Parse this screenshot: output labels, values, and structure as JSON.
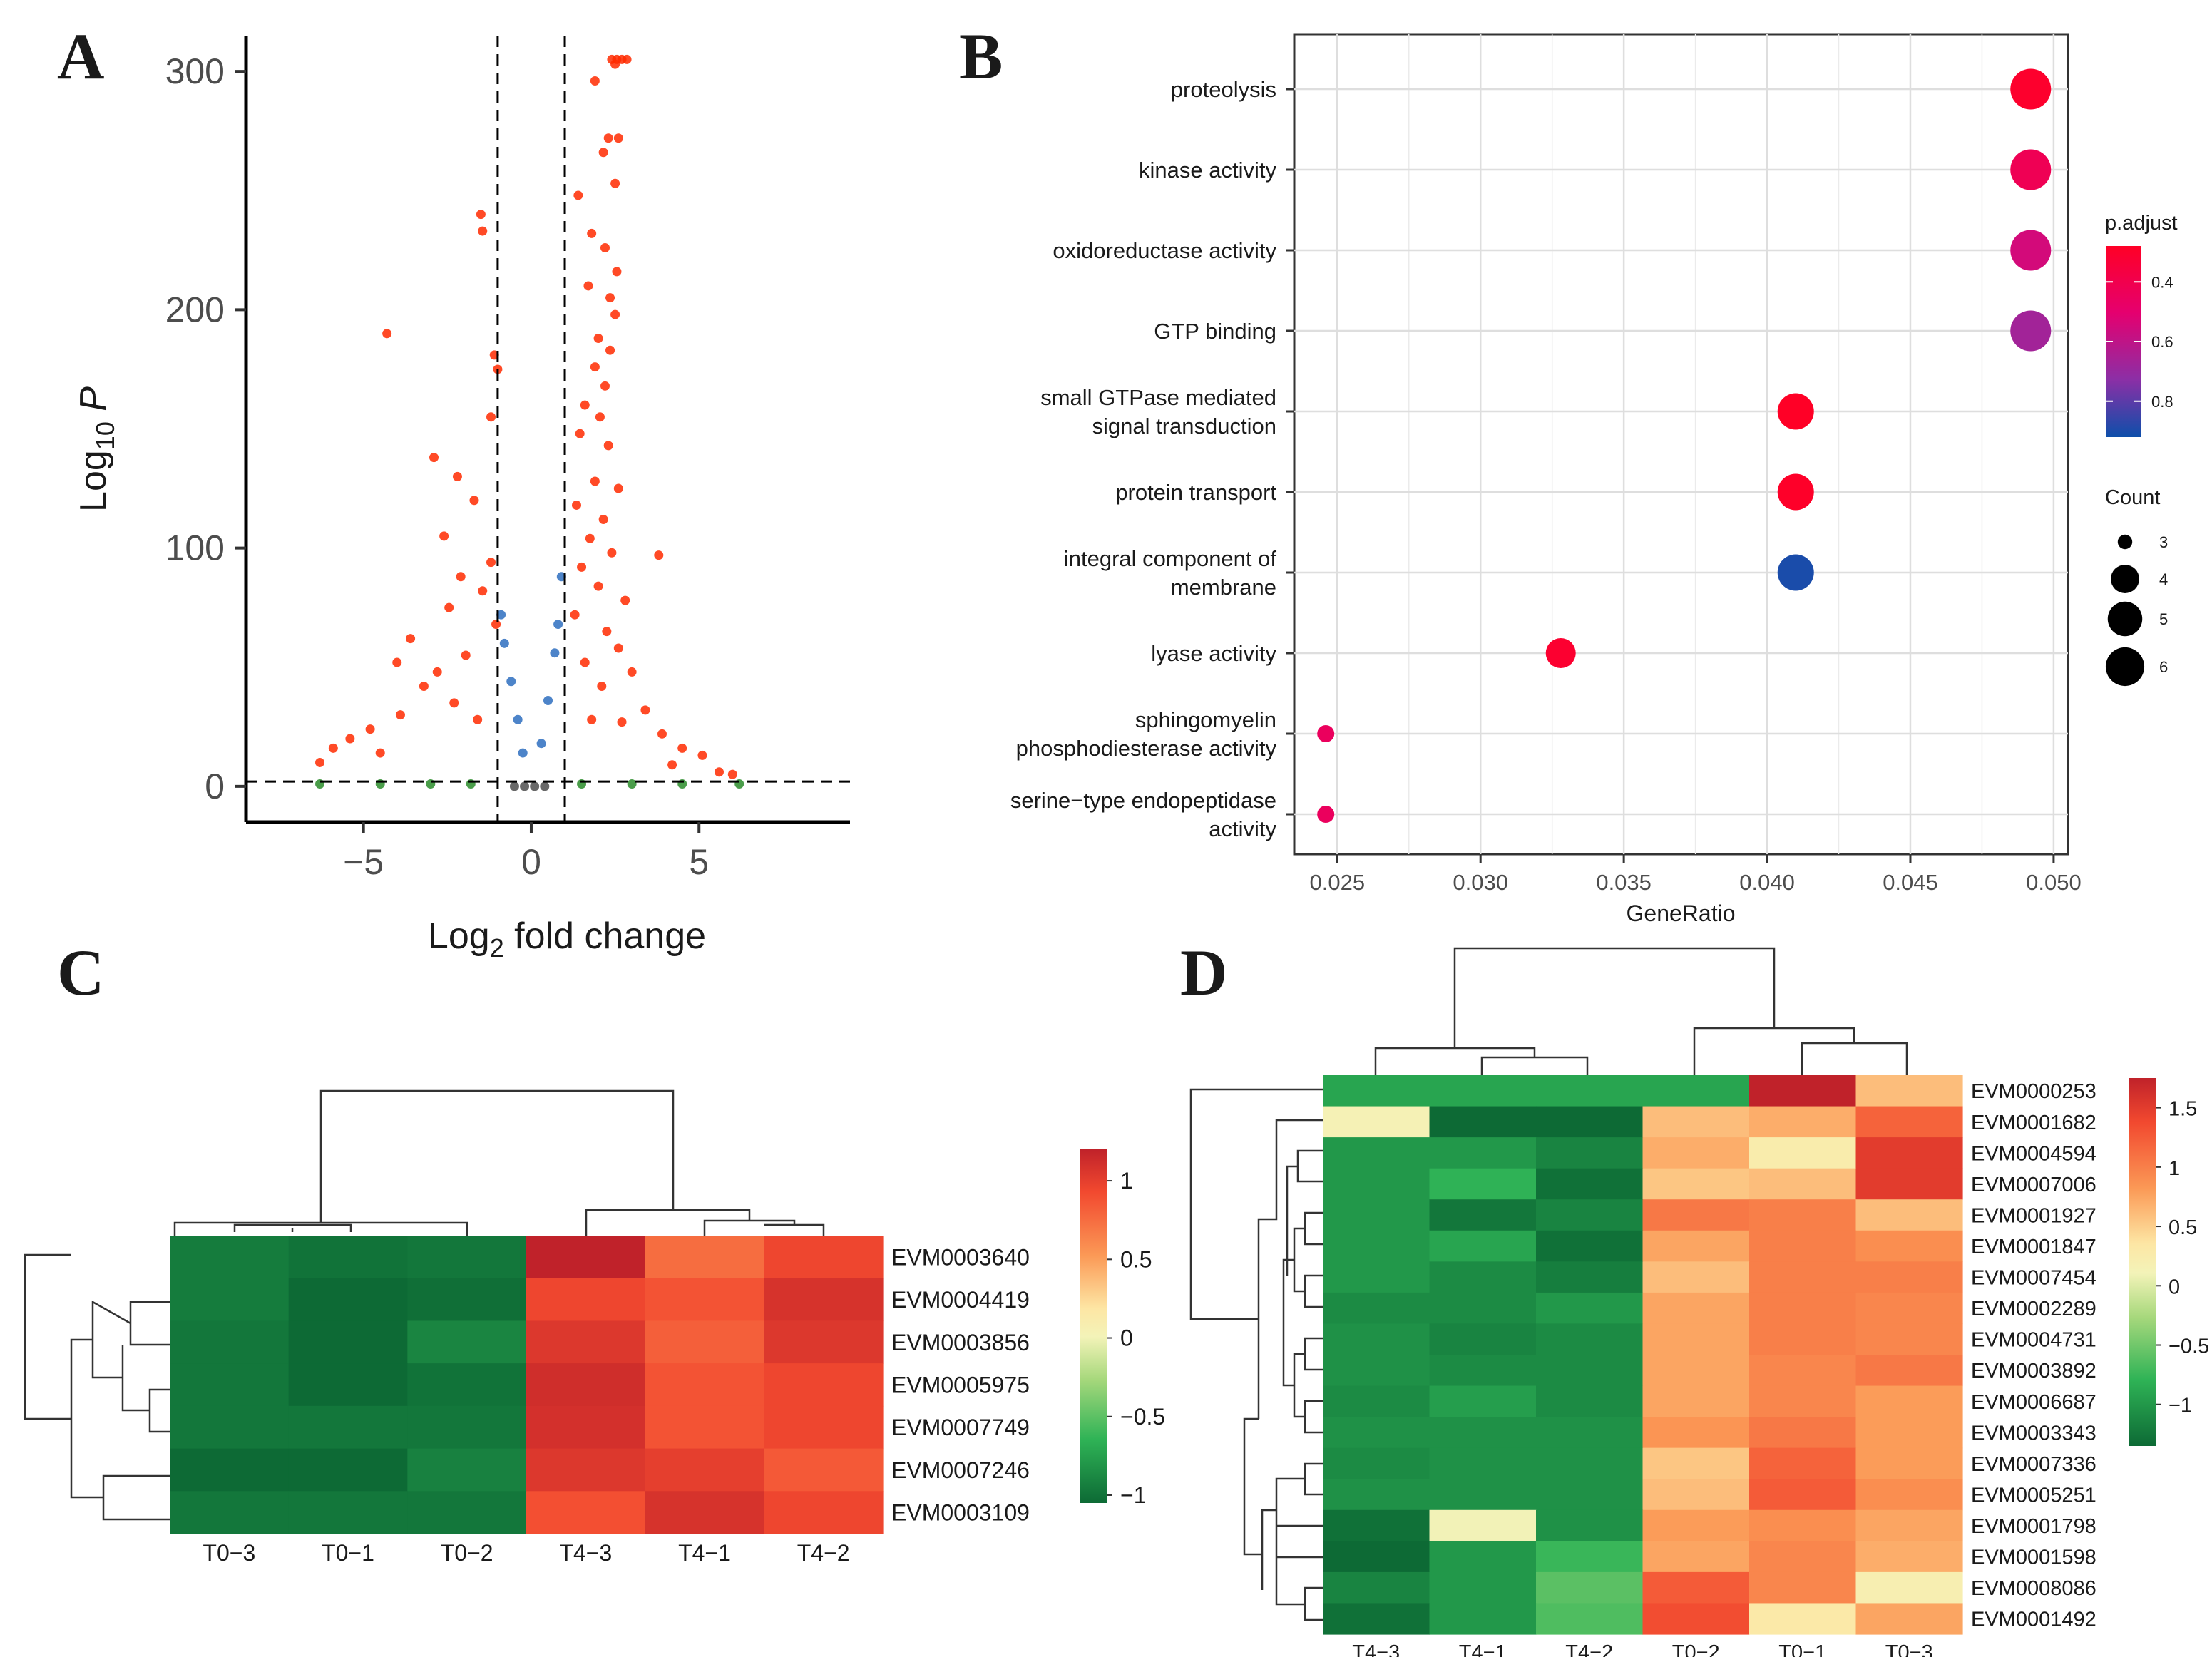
{
  "panel_labels": [
    "A",
    "B",
    "C",
    "D"
  ],
  "chart_data": [
    {
      "panel": "A",
      "type": "scatter",
      "title": "",
      "xlabel": "Log2 fold change",
      "ylabel": "Log10 P",
      "xlim": [
        -8.5,
        9.5
      ],
      "ylim": [
        -15,
        315
      ],
      "x_ticks": [
        -5,
        0,
        5
      ],
      "x_tick_labels": [
        "−5",
        "0",
        "5"
      ],
      "y_ticks": [
        0,
        100,
        200,
        300
      ],
      "y_tick_labels": [
        "0",
        "100",
        "200",
        "300"
      ],
      "fc_cutoffs": [
        -1,
        1
      ],
      "p_cutoff": 2,
      "series_colors": {
        "sig_both": "#ff2a00",
        "sig_p": "#2e6fbf",
        "sig_fc": "#2a8c2a",
        "ns": "#4d4d4d"
      },
      "points": [
        [
          2.4,
          305
        ],
        [
          2.55,
          305
        ],
        [
          2.7,
          305
        ],
        [
          2.85,
          305
        ],
        [
          2.5,
          303
        ],
        [
          1.9,
          296
        ],
        [
          2.3,
          272
        ],
        [
          2.6,
          272
        ],
        [
          2.15,
          266
        ],
        [
          2.5,
          253
        ],
        [
          1.4,
          248
        ],
        [
          -1.5,
          240
        ],
        [
          -1.45,
          233
        ],
        [
          1.8,
          232
        ],
        [
          2.2,
          226
        ],
        [
          2.55,
          216
        ],
        [
          -4.3,
          190
        ],
        [
          1.7,
          210
        ],
        [
          2.35,
          205
        ],
        [
          2.5,
          198
        ],
        [
          -1.1,
          181
        ],
        [
          2.0,
          188
        ],
        [
          2.35,
          183
        ],
        [
          -1.0,
          175
        ],
        [
          1.9,
          176
        ],
        [
          2.2,
          168
        ],
        [
          1.6,
          160
        ],
        [
          -1.2,
          155
        ],
        [
          2.05,
          155
        ],
        [
          1.45,
          148
        ],
        [
          -2.9,
          138
        ],
        [
          2.3,
          143
        ],
        [
          -2.2,
          130
        ],
        [
          1.9,
          128
        ],
        [
          2.6,
          125
        ],
        [
          -1.7,
          120
        ],
        [
          1.35,
          118
        ],
        [
          2.15,
          112
        ],
        [
          -2.6,
          105
        ],
        [
          1.75,
          104
        ],
        [
          -1.2,
          94
        ],
        [
          2.4,
          98
        ],
        [
          3.8,
          97
        ],
        [
          -2.1,
          88
        ],
        [
          1.5,
          92
        ],
        [
          -1.45,
          82
        ],
        [
          2.0,
          84
        ],
        [
          -2.45,
          75
        ],
        [
          2.8,
          78
        ],
        [
          -1.05,
          68
        ],
        [
          1.3,
          72
        ],
        [
          -3.6,
          62
        ],
        [
          2.25,
          65
        ],
        [
          -1.95,
          55
        ],
        [
          2.6,
          58
        ],
        [
          -4.0,
          52
        ],
        [
          1.6,
          52
        ],
        [
          -2.8,
          48
        ],
        [
          3.0,
          48
        ],
        [
          -3.2,
          42
        ],
        [
          2.1,
          42
        ],
        [
          -5.4,
          20
        ],
        [
          -6.3,
          10
        ],
        [
          -5.9,
          16
        ],
        [
          -4.8,
          24
        ],
        [
          -4.5,
          14
        ],
        [
          4.5,
          16
        ],
        [
          3.9,
          22
        ],
        [
          4.2,
          9
        ],
        [
          5.6,
          6
        ],
        [
          6.0,
          5
        ],
        [
          5.1,
          13
        ],
        [
          -3.9,
          30
        ],
        [
          -2.3,
          35
        ],
        [
          3.4,
          32
        ],
        [
          2.7,
          27
        ],
        [
          -1.6,
          28
        ],
        [
          1.8,
          28
        ],
        [
          -0.8,
          60
        ],
        [
          -0.6,
          44
        ],
        [
          -0.4,
          28
        ],
        [
          -0.25,
          14
        ],
        [
          0.3,
          18
        ],
        [
          0.5,
          36
        ],
        [
          0.7,
          56
        ],
        [
          0.9,
          88
        ],
        [
          -0.9,
          72
        ],
        [
          0.8,
          68
        ],
        [
          -6.3,
          1
        ],
        [
          -4.5,
          1
        ],
        [
          -3.0,
          1
        ],
        [
          -1.8,
          1
        ],
        [
          1.5,
          1
        ],
        [
          3.0,
          1
        ],
        [
          4.5,
          1
        ],
        [
          6.2,
          1
        ],
        [
          -0.5,
          0
        ],
        [
          -0.2,
          0
        ],
        [
          0.1,
          0
        ],
        [
          0.4,
          0
        ]
      ]
    },
    {
      "panel": "B",
      "type": "scatter",
      "title": "",
      "xlabel": "GeneRatio",
      "ylabel": "",
      "xlim": [
        0.0235,
        0.0505
      ],
      "x_ticks": [
        0.025,
        0.03,
        0.035,
        0.04,
        0.045,
        0.05
      ],
      "x_tick_labels": [
        "0.025",
        "0.030",
        "0.035",
        "0.040",
        "0.045",
        "0.050"
      ],
      "terms": [
        {
          "label_lines": [
            "proteolysis"
          ],
          "gene_ratio": 0.0492,
          "count": 6,
          "p_adjust": 0.3
        },
        {
          "label_lines": [
            "kinase activity"
          ],
          "gene_ratio": 0.0492,
          "count": 6,
          "p_adjust": 0.42
        },
        {
          "label_lines": [
            "oxidoreductase activity"
          ],
          "gene_ratio": 0.0492,
          "count": 6,
          "p_adjust": 0.55
        },
        {
          "label_lines": [
            "GTP binding"
          ],
          "gene_ratio": 0.0492,
          "count": 6,
          "p_adjust": 0.67
        },
        {
          "label_lines": [
            "small GTPase mediated",
            "signal transduction"
          ],
          "gene_ratio": 0.041,
          "count": 5,
          "p_adjust": 0.28
        },
        {
          "label_lines": [
            "protein transport"
          ],
          "gene_ratio": 0.041,
          "count": 5,
          "p_adjust": 0.29
        },
        {
          "label_lines": [
            "integral component of",
            "membrane"
          ],
          "gene_ratio": 0.041,
          "count": 5,
          "p_adjust": 0.9
        },
        {
          "label_lines": [
            "lyase activity"
          ],
          "gene_ratio": 0.0328,
          "count": 4,
          "p_adjust": 0.31
        },
        {
          "label_lines": [
            "sphingomyelin",
            "phosphodiesterase activity"
          ],
          "gene_ratio": 0.0246,
          "count": 3,
          "p_adjust": 0.45
        },
        {
          "label_lines": [
            "serine−type endopeptidase",
            "activity"
          ],
          "gene_ratio": 0.0246,
          "count": 3,
          "p_adjust": 0.45
        }
      ],
      "color_legend": {
        "title": "p.adjust",
        "ticks": [
          0.4,
          0.6,
          0.8
        ],
        "tick_labels": [
          "0.4",
          "0.6",
          "0.8"
        ],
        "low_color": "#ff0026",
        "mid_color": "#c2188f",
        "high_color": "#0d4faa"
      },
      "size_legend": {
        "title": "Count",
        "values": [
          3,
          4,
          5,
          6
        ],
        "labels": [
          "3",
          "4",
          "5",
          "6"
        ]
      }
    },
    {
      "panel": "C",
      "type": "heatmap",
      "columns": [
        "T0−3",
        "T0−1",
        "T0−2",
        "T4−3",
        "T4−1",
        "T4−2"
      ],
      "rows": [
        "EVM0003640",
        "EVM0004419",
        "EVM0003856",
        "EVM0005975",
        "EVM0007749",
        "EVM0007246",
        "EVM0003109"
      ],
      "values": [
        [
          -0.95,
          -1.0,
          -0.98,
          1.2,
          0.75,
          0.95
        ],
        [
          -0.95,
          -1.05,
          -1.02,
          0.95,
          0.88,
          1.08
        ],
        [
          -0.98,
          -1.05,
          -0.9,
          1.05,
          0.82,
          1.05
        ],
        [
          -0.98,
          -1.05,
          -1.0,
          1.12,
          0.88,
          0.95
        ],
        [
          -0.98,
          -0.98,
          -0.98,
          1.1,
          0.88,
          0.95
        ],
        [
          -1.05,
          -1.05,
          -0.92,
          1.05,
          1.0,
          0.85
        ],
        [
          -0.98,
          -0.98,
          -0.98,
          0.9,
          1.08,
          0.95
        ]
      ],
      "legend": {
        "ticks": [
          1,
          0.5,
          0,
          -0.5,
          -1
        ],
        "tick_labels": [
          "1",
          "0.5",
          "0",
          "−0.5",
          "−1"
        ],
        "min": -1.05,
        "max": 1.2
      }
    },
    {
      "panel": "D",
      "type": "heatmap",
      "columns": [
        "T4−3",
        "T4−1",
        "T4−2",
        "T0−2",
        "T0−1",
        "T0−3"
      ],
      "rows": [
        "EVM0000253",
        "EVM0001682",
        "EVM0004594",
        "EVM0007006",
        "EVM0001927",
        "EVM0001847",
        "EVM0007454",
        "EVM0002289",
        "EVM0004731",
        "EVM0003892",
        "EVM0006687",
        "EVM0003343",
        "EVM0007336",
        "EVM0005251",
        "EVM0001798",
        "EVM0001598",
        "EVM0008086",
        "EVM0001492"
      ],
      "values": [
        [
          -0.9,
          -0.9,
          -0.9,
          -0.9,
          1.75,
          0.6
        ],
        [
          0.15,
          -1.35,
          -1.45,
          0.6,
          0.7,
          1.2
        ],
        [
          -1.0,
          -1.0,
          -1.15,
          0.7,
          0.25,
          1.5
        ],
        [
          -1.0,
          -0.8,
          -1.3,
          0.55,
          0.6,
          1.5
        ],
        [
          -1.0,
          -1.25,
          -1.15,
          1.05,
          1.0,
          0.6
        ],
        [
          -1.0,
          -0.9,
          -1.3,
          0.75,
          1.0,
          0.9
        ],
        [
          -1.0,
          -1.1,
          -1.2,
          0.6,
          1.0,
          1.0
        ],
        [
          -1.1,
          -1.1,
          -1.0,
          0.75,
          1.0,
          0.95
        ],
        [
          -1.05,
          -1.15,
          -1.1,
          0.75,
          1.0,
          0.95
        ],
        [
          -1.05,
          -1.1,
          -1.1,
          0.75,
          0.95,
          1.05
        ],
        [
          -1.1,
          -0.95,
          -1.1,
          0.75,
          0.95,
          0.8
        ],
        [
          -1.05,
          -1.05,
          -1.05,
          0.85,
          1.05,
          0.8
        ],
        [
          -1.1,
          -1.05,
          -1.05,
          0.55,
          1.2,
          0.8
        ],
        [
          -1.05,
          -1.05,
          -1.05,
          0.6,
          1.25,
          0.9
        ],
        [
          -1.3,
          0.1,
          -1.05,
          0.8,
          0.9,
          0.75
        ],
        [
          -1.35,
          -1.0,
          -0.75,
          0.75,
          0.95,
          0.7
        ],
        [
          -1.15,
          -1.0,
          -0.6,
          1.25,
          0.95,
          0.2
        ],
        [
          -1.3,
          -1.0,
          -0.65,
          1.35,
          0.3,
          0.75
        ]
      ],
      "legend": {
        "ticks": [
          1.5,
          1,
          0.5,
          0,
          -0.5,
          -1
        ],
        "tick_labels": [
          "1.5",
          "1",
          "0.5",
          "0",
          "−0.5",
          "−1"
        ],
        "min": -1.35,
        "max": 1.75
      }
    }
  ]
}
